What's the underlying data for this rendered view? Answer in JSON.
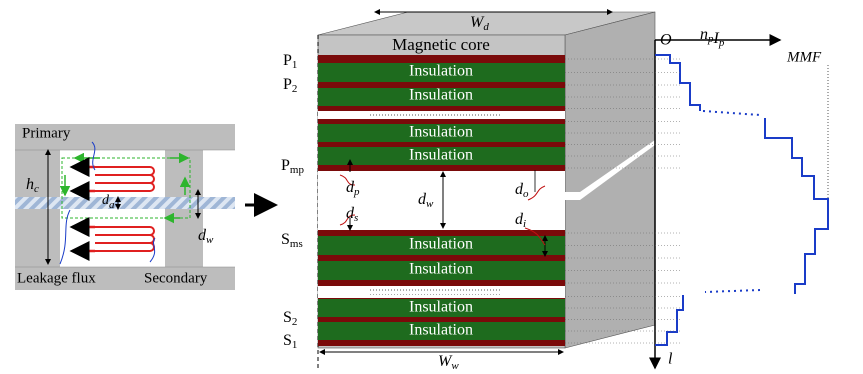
{
  "left_panel": {
    "primary": "Primary",
    "hc": {
      "base": "h",
      "sub": "c"
    },
    "da": {
      "base": "d",
      "sub": "a"
    },
    "dw": {
      "base": "d",
      "sub": "w"
    },
    "leakage_flux": "Leakage flux",
    "secondary": "Secondary"
  },
  "main": {
    "wd": {
      "base": "W",
      "sub": "d"
    },
    "core_label": "Magnetic core",
    "p1": {
      "base": "P",
      "sub": "1"
    },
    "p2": {
      "base": "P",
      "sub": "2"
    },
    "pmp": {
      "base": "P",
      "sub": "mp"
    },
    "dp": {
      "base": "d",
      "sub": "p"
    },
    "dw": {
      "base": "d",
      "sub": "w"
    },
    "do": {
      "base": "d",
      "sub": "o"
    },
    "ds": {
      "base": "d",
      "sub": "s"
    },
    "di": {
      "base": "d",
      "sub": "i"
    },
    "sms": {
      "base": "S",
      "sub": "ms"
    },
    "s2": {
      "base": "S",
      "sub": "2"
    },
    "s1": {
      "base": "S",
      "sub": "1"
    },
    "ww": {
      "base": "W",
      "sub": "w"
    },
    "insulation_labels": [
      "Insulation",
      "Insulation",
      "Insulation",
      "Insulation",
      "Insulation",
      "Insulation",
      "Insulation",
      "Insulation"
    ]
  },
  "mmf": {
    "origin": "O",
    "x_axis": {
      "parts": [
        {
          "base": "n",
          "sub": "p"
        },
        {
          "base": "I",
          "sub": "p"
        }
      ]
    },
    "mmf_label": "MMF",
    "y_axis": "l"
  }
}
